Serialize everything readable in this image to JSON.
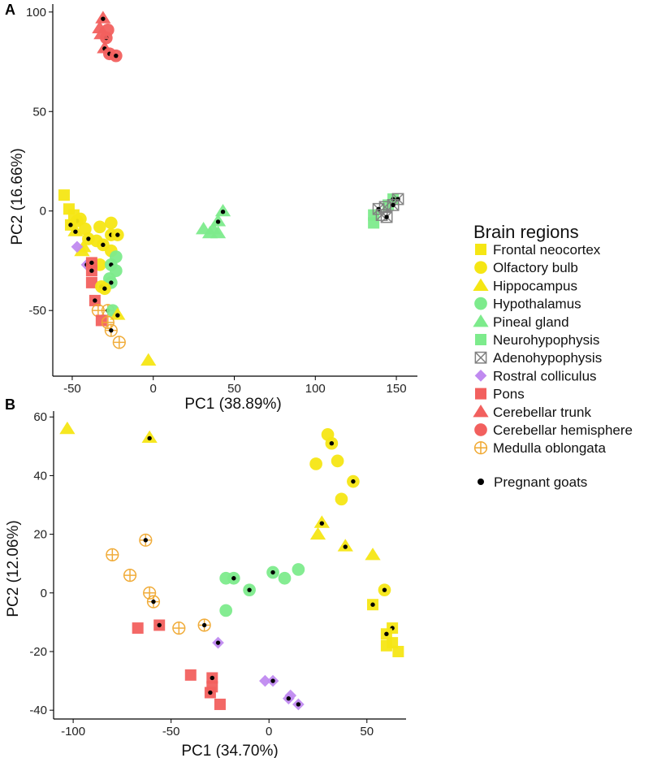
{
  "legend": {
    "title": "Brain regions",
    "pregnant_label": "Pregnant goats",
    "regions": [
      {
        "id": "frontal",
        "name": "Frontal neocortex",
        "shape": "square",
        "color": "#F5E614"
      },
      {
        "id": "olfactory",
        "name": "Olfactory bulb",
        "shape": "circle",
        "color": "#F5E614"
      },
      {
        "id": "hippocampus",
        "name": "Hippocampus",
        "shape": "triangle",
        "color": "#F5E614"
      },
      {
        "id": "hypothalamus",
        "name": "Hypothalamus",
        "shape": "circle",
        "color": "#7DEB8C"
      },
      {
        "id": "pineal",
        "name": "Pineal gland",
        "shape": "triangle",
        "color": "#7DEB8C"
      },
      {
        "id": "neurohypophysis",
        "name": "Neurohypophysis",
        "shape": "square",
        "color": "#7DEB8C"
      },
      {
        "id": "adenohypophysis",
        "name": "Adenohypophysis",
        "shape": "boxx",
        "color": "#808080"
      },
      {
        "id": "rostral",
        "name": "Rostral colliculus",
        "shape": "diamond",
        "color": "#C08AF0"
      },
      {
        "id": "pons",
        "name": "Pons",
        "shape": "square",
        "color": "#F2605E"
      },
      {
        "id": "cerebellar_trunk",
        "name": "Cerebellar trunk",
        "shape": "triangle",
        "color": "#F2605E"
      },
      {
        "id": "cerebellar_hemisphere",
        "name": "Cerebellar hemisphere",
        "shape": "circle",
        "color": "#F2605E"
      },
      {
        "id": "medulla",
        "name": "Medulla oblongata",
        "shape": "circleplus",
        "color": "#F0A830"
      }
    ]
  },
  "chart_data": [
    {
      "type": "scatter",
      "panel_label": "A",
      "xlabel": "PC1 (38.89%)",
      "ylabel": "PC2 (16.66%)",
      "xlim": [
        -62,
        163
      ],
      "ylim": [
        -83,
        104
      ],
      "xticks": [
        -50,
        0,
        50,
        100,
        150
      ],
      "yticks": [
        -50,
        0,
        50,
        100
      ],
      "points": [
        {
          "r": "cerebellar_trunk",
          "x": -31,
          "y": 97,
          "p": 1
        },
        {
          "r": "cerebellar_trunk",
          "x": -33,
          "y": 92,
          "p": 0
        },
        {
          "r": "cerebellar_hemisphere",
          "x": -28,
          "y": 91,
          "p": 0
        },
        {
          "r": "cerebellar_hemisphere",
          "x": -29,
          "y": 87,
          "p": 1
        },
        {
          "r": "cerebellar_trunk",
          "x": -32,
          "y": 89,
          "p": 0
        },
        {
          "r": "cerebellar_trunk",
          "x": -30,
          "y": 82,
          "p": 1
        },
        {
          "r": "cerebellar_hemisphere",
          "x": -27,
          "y": 79,
          "p": 1
        },
        {
          "r": "cerebellar_hemisphere",
          "x": -23,
          "y": 78,
          "p": 1
        },
        {
          "r": "frontal",
          "x": -55,
          "y": 8,
          "p": 0
        },
        {
          "r": "frontal",
          "x": -52,
          "y": 1,
          "p": 0
        },
        {
          "r": "frontal",
          "x": -49,
          "y": -2,
          "p": 0
        },
        {
          "r": "olfactory",
          "x": -47,
          "y": -5,
          "p": 1
        },
        {
          "r": "olfactory",
          "x": -45,
          "y": -4,
          "p": 0
        },
        {
          "r": "frontal",
          "x": -51,
          "y": -7,
          "p": 1
        },
        {
          "r": "hippocampus",
          "x": -48,
          "y": -10,
          "p": 1
        },
        {
          "r": "olfactory",
          "x": -42,
          "y": -9,
          "p": 0
        },
        {
          "r": "olfactory",
          "x": -33,
          "y": -8,
          "p": 0
        },
        {
          "r": "olfactory",
          "x": -26,
          "y": -6,
          "p": 0
        },
        {
          "r": "olfactory",
          "x": -26,
          "y": -12,
          "p": 1
        },
        {
          "r": "olfactory",
          "x": -22,
          "y": -12,
          "p": 1
        },
        {
          "r": "olfactory",
          "x": -40,
          "y": -14,
          "p": 1
        },
        {
          "r": "olfactory",
          "x": -35,
          "y": -15,
          "p": 0
        },
        {
          "r": "hippocampus",
          "x": -44,
          "y": -20,
          "p": 0
        },
        {
          "r": "hippocampus",
          "x": -43,
          "y": -18,
          "p": 0
        },
        {
          "r": "rostral",
          "x": -47,
          "y": -18,
          "p": 0
        },
        {
          "r": "olfactory",
          "x": -31,
          "y": -17,
          "p": 1
        },
        {
          "r": "olfactory",
          "x": -26,
          "y": -20,
          "p": 0
        },
        {
          "r": "hypothalamus",
          "x": -23,
          "y": -23,
          "p": 0
        },
        {
          "r": "olfactory",
          "x": -33,
          "y": -27,
          "p": 0
        },
        {
          "r": "hypothalamus",
          "x": -26,
          "y": -27,
          "p": 1
        },
        {
          "r": "rostral",
          "x": -41,
          "y": -27,
          "p": 1
        },
        {
          "r": "hypothalamus",
          "x": -23,
          "y": -30,
          "p": 0
        },
        {
          "r": "pons",
          "x": -38,
          "y": -26,
          "p": 1
        },
        {
          "r": "pons",
          "x": -38,
          "y": -30,
          "p": 1
        },
        {
          "r": "hypothalamus",
          "x": -27,
          "y": -34,
          "p": 0
        },
        {
          "r": "hypothalamus",
          "x": -26,
          "y": -36,
          "p": 1
        },
        {
          "r": "pons",
          "x": -38,
          "y": -36,
          "p": 0
        },
        {
          "r": "olfactory",
          "x": -32,
          "y": -38,
          "p": 1
        },
        {
          "r": "olfactory",
          "x": -30,
          "y": -39,
          "p": 1
        },
        {
          "r": "pons",
          "x": -36,
          "y": -45,
          "p": 1
        },
        {
          "r": "medulla",
          "x": -34,
          "y": -50,
          "p": 0
        },
        {
          "r": "medulla",
          "x": -28,
          "y": -50,
          "p": 1
        },
        {
          "r": "hypothalamus",
          "x": -25,
          "y": -50,
          "p": 0
        },
        {
          "r": "hippocampus",
          "x": -22,
          "y": -52,
          "p": 1
        },
        {
          "r": "pons",
          "x": -32,
          "y": -55,
          "p": 0
        },
        {
          "r": "medulla",
          "x": -28,
          "y": -56,
          "p": 0
        },
        {
          "r": "medulla",
          "x": -26,
          "y": -60,
          "p": 1
        },
        {
          "r": "medulla",
          "x": -21,
          "y": -66,
          "p": 0
        },
        {
          "r": "hippocampus",
          "x": -3,
          "y": -75,
          "p": 0
        },
        {
          "r": "pineal",
          "x": 43,
          "y": 0,
          "p": 1
        },
        {
          "r": "pineal",
          "x": 40,
          "y": -5,
          "p": 1
        },
        {
          "r": "pineal",
          "x": 37,
          "y": -9,
          "p": 0
        },
        {
          "r": "pineal",
          "x": 31,
          "y": -9,
          "p": 0
        },
        {
          "r": "pineal",
          "x": 35,
          "y": -11,
          "p": 0
        },
        {
          "r": "pineal",
          "x": 40,
          "y": -11,
          "p": 0
        },
        {
          "r": "neurohypophysis",
          "x": 136,
          "y": -2,
          "p": 0
        },
        {
          "r": "neurohypophysis",
          "x": 136,
          "y": -6,
          "p": 0
        },
        {
          "r": "neurohypophysis",
          "x": 145,
          "y": 3,
          "p": 0
        },
        {
          "r": "neurohypophysis",
          "x": 148,
          "y": 6,
          "p": 1
        },
        {
          "r": "adenohypophysis",
          "x": 151,
          "y": 6,
          "p": 1
        },
        {
          "r": "adenohypophysis",
          "x": 148,
          "y": 3,
          "p": 1
        },
        {
          "r": "adenohypophysis",
          "x": 143,
          "y": 2,
          "p": 0
        },
        {
          "r": "adenohypophysis",
          "x": 139,
          "y": 1,
          "p": 1
        },
        {
          "r": "adenohypophysis",
          "x": 141,
          "y": -2,
          "p": 0
        },
        {
          "r": "adenohypophysis",
          "x": 144,
          "y": -3,
          "p": 1
        }
      ]
    },
    {
      "type": "scatter",
      "panel_label": "B",
      "xlabel": "PC1 (34.70%)",
      "ylabel": "PC2 (12.06%)",
      "xlim": [
        -110,
        70
      ],
      "ylim": [
        -43,
        62
      ],
      "xticks": [
        -100,
        -50,
        0,
        50
      ],
      "yticks": [
        -40,
        -20,
        0,
        20,
        40,
        60
      ],
      "points": [
        {
          "r": "hippocampus",
          "x": -103,
          "y": 56,
          "p": 0
        },
        {
          "r": "hippocampus",
          "x": -61,
          "y": 53,
          "p": 1
        },
        {
          "r": "olfactory",
          "x": 30,
          "y": 54,
          "p": 0
        },
        {
          "r": "olfactory",
          "x": 32,
          "y": 51,
          "p": 1
        },
        {
          "r": "olfactory",
          "x": 35,
          "y": 45,
          "p": 0
        },
        {
          "r": "olfactory",
          "x": 24,
          "y": 44,
          "p": 0
        },
        {
          "r": "olfactory",
          "x": 43,
          "y": 38,
          "p": 1
        },
        {
          "r": "olfactory",
          "x": 37,
          "y": 32,
          "p": 0
        },
        {
          "r": "hippocampus",
          "x": 27,
          "y": 24,
          "p": 1
        },
        {
          "r": "hippocampus",
          "x": 25,
          "y": 20,
          "p": 0
        },
        {
          "r": "hippocampus",
          "x": 39,
          "y": 16,
          "p": 1
        },
        {
          "r": "hippocampus",
          "x": 53,
          "y": 13,
          "p": 0
        },
        {
          "r": "medulla",
          "x": -63,
          "y": 18,
          "p": 1
        },
        {
          "r": "medulla",
          "x": -80,
          "y": 13,
          "p": 0
        },
        {
          "r": "medulla",
          "x": -71,
          "y": 6,
          "p": 0
        },
        {
          "r": "medulla",
          "x": -61,
          "y": 0,
          "p": 0
        },
        {
          "r": "medulla",
          "x": -59,
          "y": -3,
          "p": 1
        },
        {
          "r": "medulla",
          "x": -46,
          "y": -12,
          "p": 0
        },
        {
          "r": "medulla",
          "x": -33,
          "y": -11,
          "p": 1
        },
        {
          "r": "hypothalamus",
          "x": -22,
          "y": 5,
          "p": 0
        },
        {
          "r": "hypothalamus",
          "x": -18,
          "y": 5,
          "p": 1
        },
        {
          "r": "hypothalamus",
          "x": -10,
          "y": 1,
          "p": 1
        },
        {
          "r": "hypothalamus",
          "x": 2,
          "y": 7,
          "p": 1
        },
        {
          "r": "hypothalamus",
          "x": 8,
          "y": 5,
          "p": 0
        },
        {
          "r": "hypothalamus",
          "x": 15,
          "y": 8,
          "p": 0
        },
        {
          "r": "hypothalamus",
          "x": -22,
          "y": -6,
          "p": 0
        },
        {
          "r": "olfactory",
          "x": 59,
          "y": 1,
          "p": 1
        },
        {
          "r": "frontal",
          "x": 53,
          "y": -4,
          "p": 1
        },
        {
          "r": "frontal",
          "x": 63,
          "y": -12,
          "p": 1
        },
        {
          "r": "frontal",
          "x": 60,
          "y": -14,
          "p": 1
        },
        {
          "r": "frontal",
          "x": 63,
          "y": -17,
          "p": 0
        },
        {
          "r": "frontal",
          "x": 60,
          "y": -18,
          "p": 0
        },
        {
          "r": "frontal",
          "x": 66,
          "y": -20,
          "p": 0
        },
        {
          "r": "pons",
          "x": -67,
          "y": -12,
          "p": 0
        },
        {
          "r": "pons",
          "x": -56,
          "y": -11,
          "p": 1
        },
        {
          "r": "pons",
          "x": -40,
          "y": -28,
          "p": 0
        },
        {
          "r": "pons",
          "x": -29,
          "y": -29,
          "p": 1
        },
        {
          "r": "pons",
          "x": -29,
          "y": -32,
          "p": 0
        },
        {
          "r": "pons",
          "x": -30,
          "y": -34,
          "p": 1
        },
        {
          "r": "pons",
          "x": -25,
          "y": -38,
          "p": 0
        },
        {
          "r": "rostral",
          "x": -26,
          "y": -17,
          "p": 1
        },
        {
          "r": "rostral",
          "x": -2,
          "y": -30,
          "p": 0
        },
        {
          "r": "rostral",
          "x": 2,
          "y": -30,
          "p": 1
        },
        {
          "r": "rostral",
          "x": 11,
          "y": -35,
          "p": 0
        },
        {
          "r": "rostral",
          "x": 10,
          "y": -36,
          "p": 1
        },
        {
          "r": "rostral",
          "x": 15,
          "y": -38,
          "p": 1
        }
      ]
    }
  ]
}
